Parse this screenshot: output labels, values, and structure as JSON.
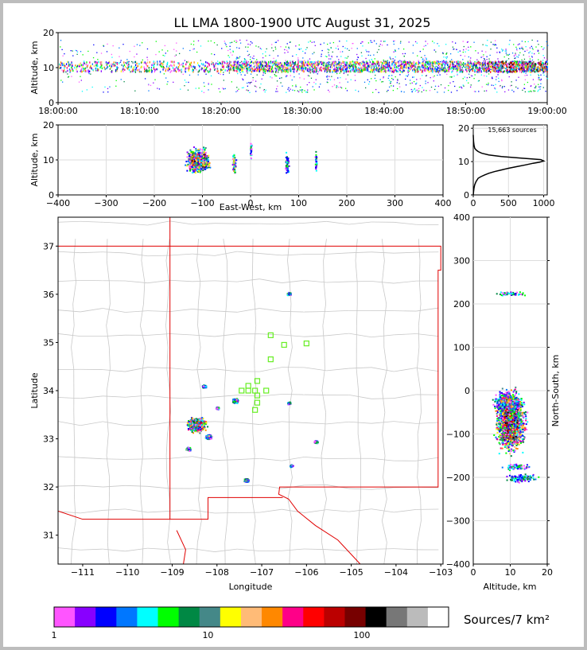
{
  "chart_data": [
    {
      "id": "time_height",
      "type": "scatter",
      "title": "LL LMA 1800-1900 UTC August 31, 2025",
      "ylabel": "Altitude, km",
      "ylim": [
        0,
        20
      ],
      "yticks": [
        "0",
        "10",
        "20"
      ],
      "xticks": [
        "18:00:00",
        "18:10:00",
        "18:20:00",
        "18:30:00",
        "18:40:00",
        "18:50:00",
        "19:00:00"
      ],
      "xlim_minutes": [
        0,
        60
      ],
      "density_by_minute": [
        1,
        1,
        1,
        1,
        1,
        1,
        1,
        1,
        1,
        1,
        1,
        1,
        1,
        1,
        1,
        1,
        1,
        1,
        1,
        1,
        2,
        3,
        3,
        3,
        3,
        3,
        3,
        3,
        3,
        3,
        3,
        3,
        3,
        3,
        3,
        3,
        3,
        3,
        3,
        3,
        3,
        3,
        3,
        3,
        3,
        3,
        3,
        3,
        3,
        3,
        3,
        3,
        4,
        4,
        4,
        4,
        5,
        5,
        5,
        5
      ],
      "core_altitude_km": [
        9,
        12
      ]
    },
    {
      "id": "ew_height",
      "type": "scatter",
      "xlabel": "East-West, km",
      "ylabel": "Altitude, km",
      "xlim": [
        -400,
        400
      ],
      "ylim": [
        0,
        20
      ],
      "xticks": [
        "−400",
        "−300",
        "−200",
        "−100",
        "0",
        "100",
        "200",
        "300",
        "400"
      ],
      "yticks": [
        "0",
        "10",
        "20"
      ],
      "clusters": [
        {
          "x": -110,
          "z": 10,
          "width_km": 50,
          "strength": 5
        },
        {
          "x": -35,
          "z": 9,
          "width_km": 8,
          "strength": 3
        },
        {
          "x": 0,
          "z": 13,
          "width_km": 4,
          "strength": 2
        },
        {
          "x": 75,
          "z": 9,
          "width_km": 8,
          "strength": 2
        },
        {
          "x": 135,
          "z": 10,
          "width_km": 4,
          "strength": 2
        }
      ]
    },
    {
      "id": "height_histogram",
      "type": "line",
      "annotation": "15,663 sources",
      "xlim": [
        0,
        1050
      ],
      "ylim": [
        0,
        21
      ],
      "xticks": [
        "0",
        "500",
        "1000"
      ],
      "yticks": [
        "0",
        "10",
        "20"
      ],
      "x": [
        0,
        5,
        10,
        20,
        40,
        70,
        110,
        160,
        220,
        300,
        400,
        500,
        620,
        740,
        850,
        940,
        1000,
        960,
        700,
        400,
        220,
        120,
        70,
        40,
        20,
        10,
        5,
        2,
        0
      ],
      "y": [
        0,
        1,
        2,
        3,
        4,
        5,
        5.5,
        6,
        6.5,
        7,
        7.5,
        8,
        8.5,
        9,
        9.5,
        9.8,
        10.2,
        10.6,
        11,
        11.5,
        12,
        12.5,
        13,
        13.5,
        14,
        15,
        16,
        17,
        18
      ]
    },
    {
      "id": "plan_map",
      "type": "scatter",
      "xlabel": "Longitude",
      "ylabel": "Latitude",
      "xlim": [
        -111.55,
        -102.95
      ],
      "ylim": [
        30.4,
        37.6
      ],
      "xticks": [
        "−111",
        "−110",
        "−109",
        "−108",
        "−107",
        "−106",
        "−105",
        "−104",
        "−103"
      ],
      "yticks": [
        "31",
        "32",
        "33",
        "34",
        "35",
        "36",
        "37"
      ],
      "storm_cells": [
        {
          "lon": -108.45,
          "lat": 33.3,
          "size": 0.25,
          "strength": 5
        },
        {
          "lon": -108.2,
          "lat": 33.05,
          "size": 0.08,
          "strength": 3
        },
        {
          "lon": -108.65,
          "lat": 32.8,
          "size": 0.06,
          "strength": 2
        },
        {
          "lon": -107.6,
          "lat": 33.8,
          "size": 0.08,
          "strength": 3
        },
        {
          "lon": -108.3,
          "lat": 34.1,
          "size": 0.05,
          "strength": 2
        },
        {
          "lon": -108.0,
          "lat": 33.65,
          "size": 0.04,
          "strength": 2
        },
        {
          "lon": -106.4,
          "lat": 33.75,
          "size": 0.04,
          "strength": 2
        },
        {
          "lon": -107.35,
          "lat": 32.15,
          "size": 0.06,
          "strength": 3
        },
        {
          "lon": -106.35,
          "lat": 32.45,
          "size": 0.04,
          "strength": 2
        },
        {
          "lon": -105.8,
          "lat": 32.95,
          "size": 0.05,
          "strength": 2
        },
        {
          "lon": -106.4,
          "lat": 36.02,
          "size": 0.05,
          "strength": 2
        }
      ],
      "stations": [
        [
          -106.8,
          35.15
        ],
        [
          -106.5,
          34.95
        ],
        [
          -106.0,
          34.98
        ],
        [
          -106.8,
          34.65
        ],
        [
          -107.1,
          34.2
        ],
        [
          -107.3,
          34.1
        ],
        [
          -107.45,
          34.0
        ],
        [
          -107.3,
          34.0
        ],
        [
          -107.15,
          34.0
        ],
        [
          -106.9,
          34.0
        ],
        [
          -107.1,
          33.9
        ],
        [
          -107.1,
          33.75
        ],
        [
          -107.15,
          33.6
        ]
      ],
      "colors": {
        "state_border": "#e00000",
        "county_border": "#c8c8c8",
        "station": "#66ee22"
      }
    },
    {
      "id": "ns_height",
      "type": "scatter",
      "xlabel": "Altitude, km",
      "ylabel": "North-South, km",
      "xlim": [
        0,
        20
      ],
      "ylim": [
        -400,
        400
      ],
      "xticks": [
        "0",
        "10",
        "20"
      ],
      "yticks": [
        "−400",
        "−300",
        "−200",
        "−100",
        "0",
        "100",
        "200",
        "300",
        "400"
      ],
      "clusters": [
        {
          "y": -70,
          "z": 10,
          "height_km": 140,
          "strength": 5
        },
        {
          "y": -25,
          "z": 9,
          "height_km": 40,
          "strength": 3
        },
        {
          "y": -175,
          "z": 12,
          "height_km": 15,
          "strength": 2
        },
        {
          "y": -200,
          "z": 13,
          "height_km": 20,
          "strength": 2
        },
        {
          "y": 225,
          "z": 10,
          "height_km": 10,
          "strength": 2
        }
      ]
    }
  ],
  "colorbar": {
    "label": "Sources/7 km²",
    "tick_labels": [
      "1",
      "10",
      "100"
    ],
    "colors": [
      "#ff55ff",
      "#8800ff",
      "#0000ff",
      "#0077ff",
      "#00ffff",
      "#00ff00",
      "#008844",
      "#448888",
      "#ffff00",
      "#ffbb77",
      "#ff8800",
      "#ff0088",
      "#ff0000",
      "#bb0000",
      "#770000",
      "#000000",
      "#777777",
      "#bbbbbb",
      "#ffffff"
    ]
  }
}
